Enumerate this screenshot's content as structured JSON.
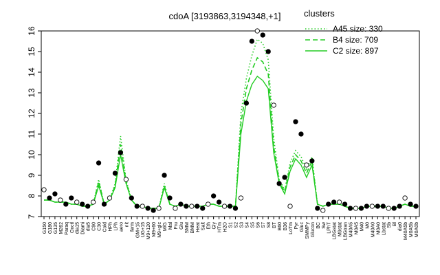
{
  "chart_data": {
    "type": "line",
    "title": "cdoA [3193863,3194348,+1]",
    "xlabel": "",
    "ylabel": "",
    "ylim": [
      7,
      16
    ],
    "yticks": [
      7,
      8,
      9,
      10,
      11,
      12,
      13,
      14,
      15,
      16
    ],
    "grid": false,
    "legend": {
      "title": "clusters",
      "placement": "top-right",
      "entries": [
        {
          "label": "A45 size: 330",
          "style": "dotted",
          "color": "#22cc22"
        },
        {
          "label": "B4 size: 709",
          "style": "dashed",
          "color": "#22cc22"
        },
        {
          "label": "C2 size: 897",
          "style": "solid",
          "color": "#22cc22"
        }
      ]
    },
    "x_tick_labels": [
      "G150",
      "G180",
      "G135",
      "M262",
      "Paraq",
      "Oxctl",
      "dia15",
      "Diami",
      "dia5",
      "C90",
      "C30",
      "Cold",
      "HPh",
      "LPh",
      "aero",
      "nit",
      "ferm",
      "GM+15",
      "UG+15",
      "M9+120",
      "M9+60",
      "M9+glc",
      "M/G",
      "Mal",
      "Fru",
      "Glu",
      "SMM",
      "BMM",
      "Heat",
      "Salt",
      "Eth",
      "Gly",
      "HTm",
      "H2O",
      "S1",
      "S2",
      "S3",
      "S4",
      "S5",
      "S6",
      "S7",
      "S8",
      "BT",
      "B60",
      "B36",
      "LoTm",
      "Pyr",
      "Gluc",
      "SMMPy",
      "Glucon",
      "BC",
      "Sw",
      "LPhT",
      "LBGstat",
      "M9stat",
      "LBGtran",
      "M40A5",
      "M0A5",
      "M40",
      "M0",
      "M40A0",
      "M0A0",
      "Lbstat",
      "Sb",
      "Bl",
      "dia0",
      "M40A5b",
      "M0A5b",
      "M0A0b"
    ],
    "series": [
      {
        "name": "A45 size: 330",
        "style": "dotted",
        "values": [
          7.8,
          7.8,
          7.7,
          7.7,
          7.7,
          7.6,
          7.6,
          7.5,
          7.5,
          7.6,
          8.8,
          7.6,
          7.8,
          8.6,
          10.9,
          8.8,
          7.8,
          7.5,
          7.5,
          7.4,
          7.4,
          7.4,
          8.6,
          7.6,
          7.5,
          7.6,
          7.5,
          7.5,
          7.5,
          7.5,
          7.6,
          7.6,
          7.5,
          7.5,
          7.5,
          7.5,
          12.0,
          13.7,
          14.8,
          15.6,
          15.4,
          14.6,
          10.8,
          8.8,
          8.3,
          9.6,
          10.2,
          9.9,
          9.3,
          9.9,
          7.6,
          7.5,
          7.6,
          7.6,
          7.6,
          7.5,
          7.4,
          7.4,
          7.4,
          7.5,
          7.5,
          7.5,
          7.5,
          7.4,
          7.4,
          7.5,
          7.6,
          7.5,
          7.5
        ]
      },
      {
        "name": "B4 size: 709",
        "style": "dashed",
        "values": [
          7.8,
          7.8,
          7.7,
          7.7,
          7.7,
          7.6,
          7.6,
          7.5,
          7.5,
          7.6,
          8.7,
          7.6,
          7.8,
          8.5,
          10.5,
          8.7,
          7.8,
          7.5,
          7.5,
          7.4,
          7.4,
          7.4,
          8.5,
          7.6,
          7.5,
          7.6,
          7.5,
          7.5,
          7.5,
          7.5,
          7.6,
          7.6,
          7.5,
          7.5,
          7.5,
          7.5,
          11.5,
          13.2,
          14.1,
          14.7,
          14.5,
          13.9,
          10.4,
          8.7,
          8.2,
          9.4,
          10.0,
          9.7,
          9.1,
          9.7,
          7.6,
          7.5,
          7.6,
          7.6,
          7.6,
          7.5,
          7.4,
          7.4,
          7.4,
          7.5,
          7.5,
          7.5,
          7.5,
          7.4,
          7.4,
          7.5,
          7.6,
          7.5,
          7.5
        ]
      },
      {
        "name": "C2 size: 897",
        "style": "solid",
        "values": [
          7.8,
          7.8,
          7.7,
          7.7,
          7.7,
          7.6,
          7.6,
          7.5,
          7.5,
          7.6,
          8.5,
          7.6,
          7.8,
          8.4,
          10.0,
          8.6,
          7.8,
          7.5,
          7.5,
          7.4,
          7.4,
          7.4,
          8.4,
          7.6,
          7.5,
          7.6,
          7.5,
          7.5,
          7.5,
          7.5,
          7.6,
          7.6,
          7.5,
          7.5,
          7.5,
          7.5,
          11.0,
          12.6,
          13.4,
          13.8,
          13.6,
          13.2,
          10.1,
          8.6,
          8.1,
          9.2,
          9.8,
          9.5,
          8.9,
          9.5,
          7.6,
          7.5,
          7.6,
          7.6,
          7.6,
          7.5,
          7.4,
          7.4,
          7.4,
          7.5,
          7.5,
          7.5,
          7.5,
          7.4,
          7.4,
          7.5,
          7.6,
          7.5,
          7.5
        ]
      },
      {
        "name": "",
        "style": "points",
        "values": [
          8.3,
          7.9,
          8.1,
          7.8,
          7.6,
          7.9,
          7.7,
          7.6,
          7.5,
          7.7,
          9.6,
          7.6,
          7.9,
          9.1,
          10.1,
          8.8,
          7.9,
          7.5,
          7.5,
          7.4,
          7.3,
          7.4,
          9.0,
          7.9,
          7.4,
          7.6,
          7.5,
          7.5,
          7.5,
          7.4,
          7.6,
          8.0,
          7.7,
          7.5,
          7.5,
          7.4,
          7.9,
          12.5,
          15.5,
          16.0,
          15.8,
          15.0,
          12.4,
          8.6,
          8.9,
          7.5,
          11.6,
          11.0,
          9.5,
          9.7,
          7.4,
          7.3,
          7.6,
          7.7,
          7.7,
          7.6,
          7.4,
          7.4,
          7.4,
          7.5,
          7.5,
          7.5,
          7.5,
          7.4,
          7.4,
          7.5,
          7.9,
          7.6,
          7.5
        ]
      }
    ]
  }
}
